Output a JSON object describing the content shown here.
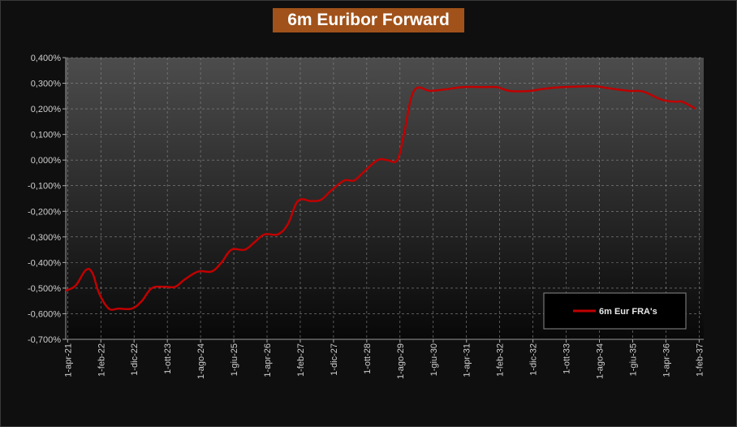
{
  "title": "6m Euribor Forward",
  "colors": {
    "series": "#c00000",
    "title_bg": "#a0521a",
    "grid": "#8a8a8a",
    "axis_text": "#cfcfcf"
  },
  "chart_data": {
    "type": "line",
    "title": "6m Euribor Forward",
    "xlabel": "",
    "ylabel": "",
    "ylim": [
      -0.7,
      0.4
    ],
    "y_ticks": [
      "0,400%",
      "0,300%",
      "0,200%",
      "0,100%",
      "0,000%",
      "-0,100%",
      "-0,200%",
      "-0,300%",
      "-0,400%",
      "-0,500%",
      "-0,600%",
      "-0,700%"
    ],
    "x_ticks": [
      "1-apr-21",
      "1-feb-22",
      "1-dic-22",
      "1-ott-23",
      "1-ago-24",
      "1-giu-25",
      "1-apr-26",
      "1-feb-27",
      "1-dic-27",
      "1-ott-28",
      "1-ago-29",
      "1-giu-30",
      "1-apr-31",
      "1-feb-32",
      "1-dic-32",
      "1-ott-33",
      "1-ago-34",
      "1-giu-35",
      "1-apr-36",
      "1-feb-37"
    ],
    "grid": true,
    "legend_position": "bottom-right",
    "series": [
      {
        "name": "6m Eur FRA's",
        "x": [
          "2021-04-01",
          "2021-07-01",
          "2021-10-01",
          "2021-12-01",
          "2022-02-01",
          "2022-05-01",
          "2022-08-01",
          "2022-12-01",
          "2023-03-01",
          "2023-06-01",
          "2023-10-01",
          "2024-01-01",
          "2024-04-01",
          "2024-08-01",
          "2024-12-01",
          "2025-03-01",
          "2025-06-01",
          "2025-10-01",
          "2026-01-01",
          "2026-04-01",
          "2026-08-01",
          "2026-11-01",
          "2027-02-01",
          "2027-06-01",
          "2027-09-01",
          "2027-12-01",
          "2028-04-01",
          "2028-07-01",
          "2028-10-01",
          "2029-02-01",
          "2029-05-01",
          "2029-08-01",
          "2029-10-01",
          "2030-01-01",
          "2030-06-01",
          "2030-10-01",
          "2031-04-01",
          "2031-10-01",
          "2032-02-01",
          "2032-06-01",
          "2032-12-01",
          "2033-04-01",
          "2033-10-01",
          "2034-04-01",
          "2034-08-01",
          "2034-12-01",
          "2035-06-01",
          "2035-10-01",
          "2036-04-01",
          "2036-08-01",
          "2036-10-01",
          "2037-02-01"
        ],
        "values": [
          -0.51,
          -0.49,
          -0.43,
          -0.44,
          -0.52,
          -0.58,
          -0.58,
          -0.58,
          -0.55,
          -0.5,
          -0.495,
          -0.495,
          -0.465,
          -0.435,
          -0.435,
          -0.4,
          -0.35,
          -0.35,
          -0.32,
          -0.29,
          -0.29,
          -0.25,
          -0.16,
          -0.16,
          -0.155,
          -0.12,
          -0.08,
          -0.08,
          -0.045,
          0.0,
          0.0,
          0.0,
          0.1,
          0.27,
          0.27,
          0.275,
          0.285,
          0.285,
          0.285,
          0.27,
          0.27,
          0.278,
          0.285,
          0.288,
          0.288,
          0.28,
          0.27,
          0.268,
          0.235,
          0.228,
          0.228,
          0.2
        ]
      }
    ]
  }
}
